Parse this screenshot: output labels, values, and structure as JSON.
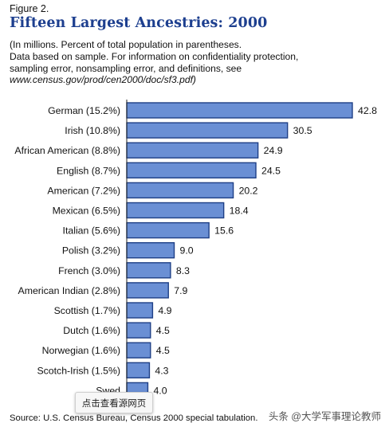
{
  "figure": {
    "label": "Figure 2.",
    "title": "Fifteen Largest Ancestries: 2000",
    "notes": [
      "(In millions. Percent of total population in parentheses.",
      "Data based on sample.  For information on confidentiality protection,",
      "sampling error, nonsampling error, and definitions, see"
    ],
    "url": "www.census.gov/prod/cen2000/doc/sf3.pdf)",
    "source": "Source:  U.S. Census Bureau, Census 2000 special tabulation."
  },
  "overlay": {
    "popup_text": "点击查看源网页",
    "watermark": "头条 @大学军事理论教师"
  },
  "colors": {
    "bar_fill": "#6a8fd4",
    "bar_stroke": "#1e3f86",
    "title": "#1d3f8f"
  },
  "chart_data": {
    "type": "bar",
    "orientation": "horizontal",
    "categories": [
      "German (15.2%)",
      "Irish (10.8%)",
      "African American (8.8%)",
      "English (8.7%)",
      "American (7.2%)",
      "Mexican (6.5%)",
      "Italian (5.6%)",
      "Polish (3.2%)",
      "French (3.0%)",
      "American Indian (2.8%)",
      "Scottish (1.7%)",
      "Dutch (1.6%)",
      "Norwegian (1.6%)",
      "Scotch-Irish (1.5%)",
      "Swed"
    ],
    "values": [
      42.8,
      30.5,
      24.9,
      24.5,
      20.2,
      18.4,
      15.6,
      9.0,
      8.3,
      7.9,
      4.9,
      4.5,
      4.5,
      4.3,
      4.0
    ],
    "value_labels": [
      "42.8",
      "30.5",
      "24.9",
      "24.5",
      "20.2",
      "18.4",
      "15.6",
      "9.0",
      "8.3",
      "7.9",
      "4.9",
      "4.5",
      "4.5",
      "4.3",
      "4.0"
    ],
    "xlim": [
      0,
      42.8
    ],
    "grid": false,
    "legend": "none"
  }
}
